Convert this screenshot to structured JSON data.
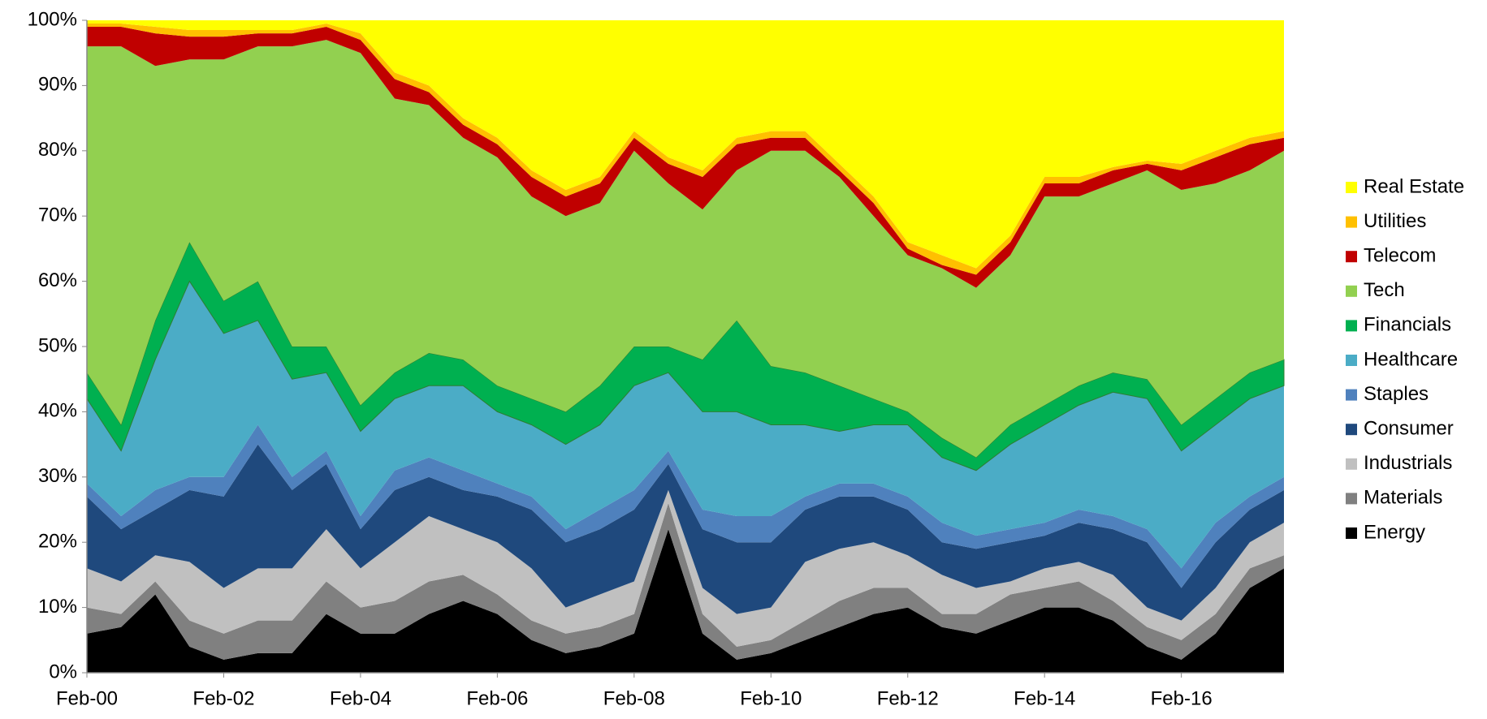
{
  "chart_data": {
    "type": "stacked_area",
    "categories": [
      "Feb-00",
      null,
      null,
      null,
      "Feb-02",
      null,
      null,
      null,
      "Feb-04",
      null,
      null,
      null,
      "Feb-06",
      null,
      null,
      null,
      "Feb-08",
      null,
      null,
      null,
      "Feb-10",
      null,
      null,
      null,
      "Feb-12",
      null,
      null,
      null,
      "Feb-14",
      null,
      null,
      null,
      "Feb-16",
      null,
      null,
      null
    ],
    "ylim": [
      0,
      100
    ],
    "yticks": [
      {
        "value": 0,
        "label": "0%"
      },
      {
        "value": 10,
        "label": "10%"
      },
      {
        "value": 20,
        "label": "20%"
      },
      {
        "value": 30,
        "label": "30%"
      },
      {
        "value": 40,
        "label": "40%"
      },
      {
        "value": 50,
        "label": "50%"
      },
      {
        "value": 60,
        "label": "60%"
      },
      {
        "value": 70,
        "label": "70%"
      },
      {
        "value": 80,
        "label": "80%"
      },
      {
        "value": 90,
        "label": "90%"
      },
      {
        "value": 100,
        "label": "100%"
      }
    ],
    "grid": false,
    "legend": "right",
    "series": [
      {
        "name": "Energy",
        "color": "#000000",
        "values": [
          6,
          7,
          12,
          4,
          2,
          3,
          3,
          9,
          6,
          6,
          9,
          11,
          9,
          5,
          3,
          4,
          6,
          22,
          6,
          2,
          3,
          5,
          7,
          9,
          10,
          7,
          6,
          8,
          10,
          10,
          8,
          4,
          2,
          6,
          13,
          16
        ]
      },
      {
        "name": "Materials",
        "color": "#808080",
        "values": [
          4,
          2,
          2,
          4,
          4,
          5,
          5,
          5,
          4,
          5,
          5,
          4,
          3,
          3,
          3,
          3,
          3,
          4,
          3,
          2,
          2,
          3,
          4,
          4,
          3,
          2,
          3,
          4,
          3,
          4,
          3,
          3,
          3,
          3,
          3,
          2
        ]
      },
      {
        "name": "Industrials",
        "color": "#c0c0c0",
        "values": [
          6,
          5,
          4,
          9,
          7,
          8,
          8,
          8,
          6,
          9,
          10,
          7,
          8,
          8,
          4,
          5,
          5,
          2,
          4,
          5,
          5,
          9,
          8,
          7,
          5,
          6,
          4,
          2,
          3,
          3,
          4,
          3,
          3,
          4,
          4,
          5
        ]
      },
      {
        "name": "Consumer",
        "color": "#1f497d",
        "values": [
          11,
          8,
          7,
          11,
          14,
          19,
          12,
          10,
          6,
          8,
          6,
          6,
          7,
          9,
          10,
          10,
          11,
          4,
          9,
          11,
          10,
          8,
          8,
          7,
          7,
          5,
          6,
          6,
          5,
          6,
          7,
          10,
          5,
          7,
          5,
          5
        ]
      },
      {
        "name": "Staples",
        "color": "#4f81bd",
        "values": [
          2,
          2,
          3,
          2,
          3,
          3,
          2,
          2,
          2,
          3,
          3,
          3,
          2,
          2,
          2,
          3,
          3,
          2,
          3,
          4,
          4,
          2,
          2,
          2,
          2,
          3,
          2,
          2,
          2,
          2,
          2,
          2,
          3,
          3,
          2,
          2
        ]
      },
      {
        "name": "Healthcare",
        "color": "#4bacc6",
        "values": [
          13,
          10,
          20,
          30,
          22,
          16,
          15,
          12,
          13,
          11,
          11,
          13,
          11,
          11,
          13,
          13,
          16,
          12,
          15,
          16,
          14,
          11,
          8,
          9,
          11,
          10,
          10,
          13,
          15,
          16,
          19,
          20,
          18,
          15,
          15,
          14
        ]
      },
      {
        "name": "Financials",
        "color": "#00b050",
        "values": [
          4,
          4,
          6,
          6,
          5,
          6,
          5,
          4,
          4,
          4,
          5,
          4,
          4,
          4,
          5,
          6,
          6,
          4,
          8,
          14,
          9,
          8,
          7,
          4,
          2,
          3,
          2,
          3,
          3,
          3,
          3,
          3,
          4,
          4,
          4,
          4
        ]
      },
      {
        "name": "Tech",
        "color": "#92d050",
        "values": [
          50,
          58,
          39,
          28,
          37,
          36,
          46,
          47,
          54,
          42,
          38,
          34,
          35,
          31,
          30,
          28,
          30,
          25,
          23,
          23,
          33,
          34,
          32,
          28,
          24,
          26,
          26,
          26,
          32,
          29,
          29,
          32,
          36,
          33,
          31,
          32
        ]
      },
      {
        "name": "Telecom",
        "color": "#c00000",
        "values": [
          3,
          3,
          5,
          3.5,
          3.5,
          2,
          2,
          2,
          2,
          3,
          2,
          2,
          2,
          3,
          3,
          3,
          2,
          3,
          5,
          4,
          2,
          2,
          1,
          2,
          1,
          0.5,
          2,
          2,
          2,
          2,
          2,
          1,
          3,
          4,
          4,
          2
        ]
      },
      {
        "name": "Utilities",
        "color": "#ffc000",
        "values": [
          0.5,
          0.5,
          1,
          1,
          1,
          0.5,
          0.5,
          0.5,
          1,
          1,
          1,
          1,
          1,
          1,
          1,
          1,
          1,
          1,
          1,
          1,
          1,
          1,
          1,
          1,
          1,
          1.5,
          1,
          1,
          1,
          1,
          0.5,
          0.5,
          1,
          1,
          1,
          1
        ]
      },
      {
        "name": "Real Estate",
        "color": "#ffff00",
        "values": [
          0.5,
          0.5,
          1,
          1.5,
          1.5,
          1.5,
          1.5,
          0.5,
          2,
          8,
          10,
          15,
          18,
          23,
          26,
          24,
          17,
          21,
          23,
          18,
          17,
          17,
          22,
          27,
          34,
          36,
          38,
          33,
          24,
          24,
          22.5,
          21.5,
          22,
          20,
          18,
          17
        ]
      }
    ]
  }
}
